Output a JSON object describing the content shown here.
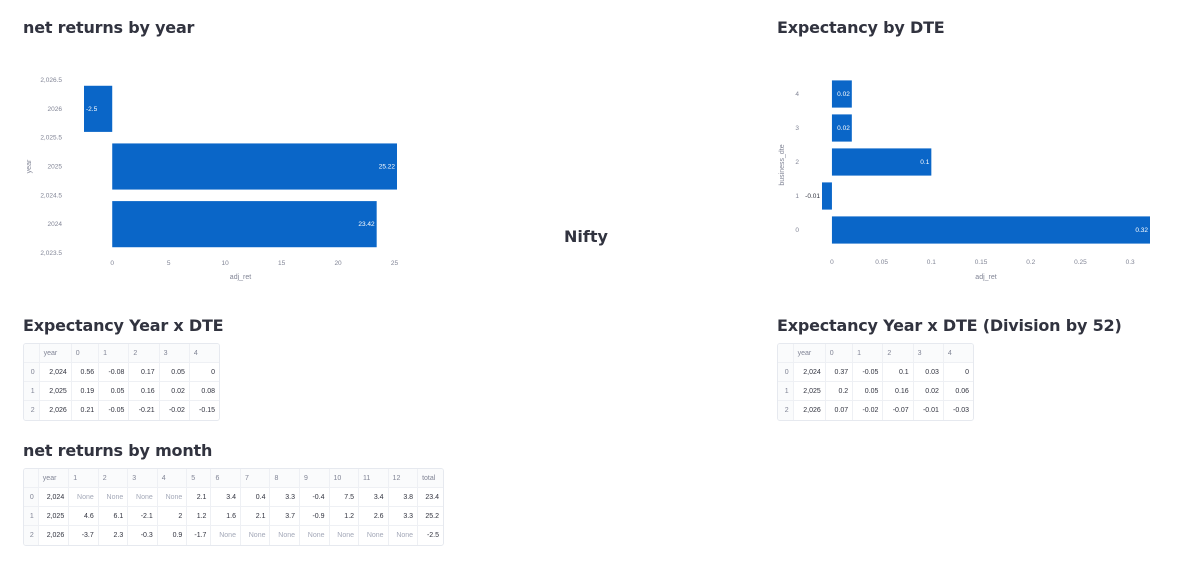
{
  "sections": {
    "year_chart_title": "net returns by year",
    "dte_chart_title": "Expectancy by DTE",
    "center_label": "Nifty",
    "table1_title": "Expectancy Year x DTE",
    "table2_title": "Expectancy Year x DTE (Division by 52)",
    "table3_title": "net returns by month"
  },
  "chart_data": [
    {
      "type": "bar",
      "orientation": "horizontal",
      "title": "net returns by year",
      "xlabel": "adj_ret",
      "ylabel": "year",
      "categories": [
        2026,
        2025,
        2024
      ],
      "values": [
        -2.5,
        25.22,
        23.42
      ],
      "data_labels": [
        "-2.5",
        "25.22",
        "23.42"
      ],
      "xlim": [
        -2.5,
        25.22
      ],
      "ylim": [
        2023.5,
        2026.5
      ],
      "x_ticks": [
        0,
        5,
        10,
        15,
        20,
        25
      ],
      "x_tick_labels": [
        "0",
        "5",
        "10",
        "15",
        "20",
        "25"
      ],
      "y_ticks": [
        2026.5,
        2026,
        2025.5,
        2025,
        2024.5,
        2024,
        2023.5
      ],
      "y_tick_labels": [
        "2,026.5",
        "2026",
        "2,025.5",
        "2025",
        "2,024.5",
        "2024",
        "2,023.5"
      ],
      "color": "#0a66c8",
      "grid": false
    },
    {
      "type": "bar",
      "orientation": "horizontal",
      "title": "Expectancy by DTE",
      "xlabel": "adj_ret",
      "ylabel": "business_dte",
      "categories": [
        4,
        3,
        2,
        1,
        0
      ],
      "values": [
        0.02,
        0.02,
        0.1,
        -0.01,
        0.32
      ],
      "data_labels": [
        "0.02",
        "0.02",
        "0.1",
        "-0.01",
        "0.32"
      ],
      "xlim": [
        -0.01,
        0.32
      ],
      "x_ticks": [
        0,
        0.05,
        0.1,
        0.15,
        0.2,
        0.25,
        0.3
      ],
      "x_tick_labels": [
        "0",
        "0.05",
        "0.1",
        "0.15",
        "0.2",
        "0.25",
        "0.3"
      ],
      "y_tick_labels": [
        "4",
        "3",
        "2",
        "1",
        "0"
      ],
      "color": "#0a66c8",
      "grid": false
    }
  ],
  "tables": {
    "dte": {
      "columns": [
        "",
        "year",
        "0",
        "1",
        "2",
        "3",
        "4"
      ],
      "rows": [
        [
          "0",
          "2,024",
          "0.56",
          "-0.08",
          "0.17",
          "0.05",
          "0"
        ],
        [
          "1",
          "2,025",
          "0.19",
          "0.05",
          "0.16",
          "0.02",
          "0.08"
        ],
        [
          "2",
          "2,026",
          "0.21",
          "-0.05",
          "-0.21",
          "-0.02",
          "-0.15"
        ]
      ]
    },
    "dte52": {
      "columns": [
        "",
        "year",
        "0",
        "1",
        "2",
        "3",
        "4"
      ],
      "rows": [
        [
          "0",
          "2,024",
          "0.37",
          "-0.05",
          "0.1",
          "0.03",
          "0"
        ],
        [
          "1",
          "2,025",
          "0.2",
          "0.05",
          "0.16",
          "0.02",
          "0.06"
        ],
        [
          "2",
          "2,026",
          "0.07",
          "-0.02",
          "-0.07",
          "-0.01",
          "-0.03"
        ]
      ]
    },
    "month": {
      "columns": [
        "",
        "year",
        "1",
        "2",
        "3",
        "4",
        "5",
        "6",
        "7",
        "8",
        "9",
        "10",
        "11",
        "12",
        "total"
      ],
      "rows": [
        [
          "0",
          "2,024",
          "None",
          "None",
          "None",
          "None",
          "2.1",
          "3.4",
          "0.4",
          "3.3",
          "-0.4",
          "7.5",
          "3.4",
          "3.8",
          "23.4"
        ],
        [
          "1",
          "2,025",
          "4.6",
          "6.1",
          "-2.1",
          "2",
          "1.2",
          "1.6",
          "2.1",
          "3.7",
          "-0.9",
          "1.2",
          "2.6",
          "3.3",
          "25.2"
        ],
        [
          "2",
          "2,026",
          "-3.7",
          "2.3",
          "-0.3",
          "0.9",
          "-1.7",
          "None",
          "None",
          "None",
          "None",
          "None",
          "None",
          "None",
          "-2.5"
        ]
      ]
    }
  }
}
